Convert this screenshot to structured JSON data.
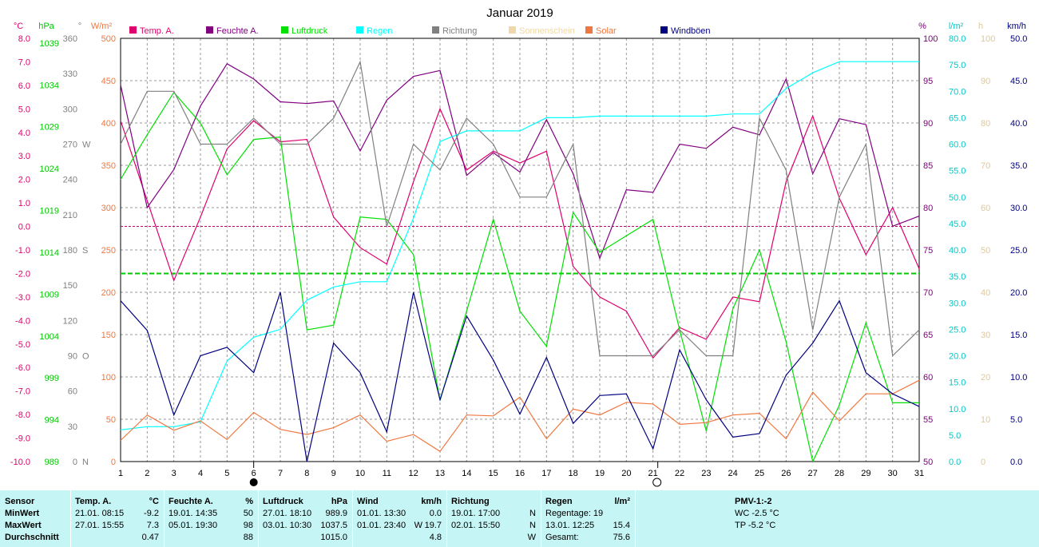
{
  "chart_data": {
    "type": "line",
    "title": "Januar 2019",
    "x": [
      1,
      2,
      3,
      4,
      5,
      6,
      7,
      8,
      9,
      10,
      11,
      12,
      13,
      14,
      15,
      16,
      17,
      18,
      19,
      20,
      21,
      22,
      23,
      24,
      25,
      26,
      27,
      28,
      29,
      30,
      31
    ],
    "legend": [
      {
        "name": "Temp. A.",
        "color": "#e0006e"
      },
      {
        "name": "Feuchte A.",
        "color": "#800080"
      },
      {
        "name": "Luftdruck",
        "color": "#00e000"
      },
      {
        "name": "Regen",
        "color": "#00ffff"
      },
      {
        "name": "Richtung",
        "color": "#808080"
      },
      {
        "name": "Sonnenschein",
        "color": "#f0d8a8"
      },
      {
        "name": "Solar",
        "color": "#f07840"
      },
      {
        "name": "Windböen",
        "color": "#000080"
      }
    ],
    "axes": {
      "temp": {
        "unit": "°C",
        "ylim": [
          -10,
          8
        ],
        "ticks": [
          "-10.0",
          "-9.0",
          "-8.0",
          "-7.0",
          "-6.0",
          "-5.0",
          "-4.0",
          "-3.0",
          "-2.0",
          "-1.0",
          "0.0",
          "1.0",
          "2.0",
          "3.0",
          "4.0",
          "5.0",
          "6.0",
          "7.0",
          "8.0"
        ]
      },
      "pressure": {
        "unit": "hPa",
        "ticks": [
          "989",
          "994",
          "999",
          "1004",
          "1009",
          "1014",
          "1019",
          "1024",
          "1029",
          "1034",
          "1039"
        ]
      },
      "direction": {
        "unit": "°",
        "ylim": [
          0,
          360
        ],
        "ticks": [
          "0",
          "30",
          "60",
          "90",
          "120",
          "150",
          "180",
          "210",
          "240",
          "270",
          "300",
          "330",
          "360"
        ],
        "compass": [
          "N",
          "O",
          "S",
          "W"
        ]
      },
      "solar": {
        "unit": "W/m²",
        "ylim": [
          0,
          500
        ],
        "ticks": [
          "0",
          "50",
          "100",
          "150",
          "200",
          "250",
          "300",
          "350",
          "400",
          "450",
          "500"
        ]
      },
      "humidity": {
        "unit": "%",
        "ylim": [
          50,
          100
        ],
        "ticks": [
          "50",
          "55",
          "60",
          "65",
          "70",
          "75",
          "80",
          "85",
          "90",
          "95",
          "100"
        ]
      },
      "rain": {
        "unit": "l/m²",
        "ylim": [
          0,
          80
        ],
        "ticks": [
          "0.0",
          "5.0",
          "10.0",
          "15.0",
          "20.0",
          "25.0",
          "30.0",
          "35.0",
          "40.0",
          "45.0",
          "50.0",
          "55.0",
          "60.0",
          "65.0",
          "70.0",
          "75.0",
          "80.0"
        ]
      },
      "sunshine": {
        "unit": "h",
        "ylim": [
          0,
          100
        ],
        "ticks": [
          "0",
          "10",
          "20",
          "30",
          "40",
          "50",
          "60",
          "70",
          "80",
          "90",
          "100"
        ]
      },
      "wind": {
        "unit": "km/h",
        "ylim": [
          0,
          50
        ],
        "ticks": [
          "0.0",
          "5.0",
          "10.0",
          "15.0",
          "20.0",
          "25.0",
          "30.0",
          "35.0",
          "40.0",
          "45.0",
          "50.0"
        ]
      }
    },
    "reference_lines": {
      "temp_zero": 0.0,
      "pressure_mean_temp_scale": -2.0
    },
    "moon": {
      "full_moon_day": 21,
      "new_moon_day": 6
    },
    "series": [
      {
        "name": "Temp. A.",
        "axis": "temp",
        "color": "#e0006e",
        "values": [
          4.5,
          1.1,
          -2.3,
          0.4,
          3.3,
          4.5,
          3.6,
          3.7,
          0.4,
          -0.9,
          -1.6,
          1.9,
          5.0,
          2.4,
          3.2,
          2.7,
          3.2,
          -1.7,
          -3.0,
          -3.6,
          -5.6,
          -4.3,
          -4.8,
          -3.0,
          -3.2,
          1.9,
          4.7,
          1.2,
          -1.2,
          0.8,
          -1.8
        ]
      },
      {
        "name": "Feuchte A.",
        "axis": "humidity",
        "color": "#800080",
        "values": [
          94.5,
          80,
          84.5,
          92,
          97,
          95.2,
          92.5,
          92.3,
          92.6,
          86.7,
          92.7,
          95.5,
          96.2,
          83.8,
          86.5,
          84.2,
          90.4,
          84,
          74,
          82.1,
          81.8,
          87.5,
          87,
          89.5,
          88.6,
          95.2,
          84,
          90.5,
          89.8,
          77.8,
          79
        ]
      },
      {
        "name": "Luftdruck",
        "axis": "temp",
        "color": "#00e000",
        "values": [
          2.0,
          3.9,
          5.7,
          4.4,
          2.2,
          3.7,
          3.8,
          -4.4,
          -4.2,
          0.4,
          0.3,
          -1.2,
          -7.4,
          -3.6,
          0.3,
          -3.6,
          -5.1,
          0.6,
          -1.1,
          -0.4,
          0.3,
          -4.4,
          -8.7,
          -3.5,
          -1.0,
          -4.9,
          -10.0,
          -7.6,
          -4.1,
          -7.5,
          -7.5
        ]
      },
      {
        "name": "Regen",
        "axis": "rain",
        "color": "#00ffff",
        "values": [
          6,
          6.6,
          6.6,
          7.5,
          19,
          23.5,
          25,
          30.5,
          33,
          34,
          34,
          46,
          60.5,
          62.5,
          62.5,
          62.5,
          65,
          65,
          65.3,
          65.3,
          65.3,
          65.3,
          65.3,
          65.7,
          65.7,
          70.5,
          73.5,
          75.6,
          75.6,
          75.6,
          75.6
        ]
      },
      {
        "name": "Richtung",
        "axis": "direction",
        "color": "#808080",
        "values": [
          270,
          315,
          315,
          270,
          270,
          292,
          270,
          270,
          292,
          340,
          200,
          270,
          248,
          292,
          270,
          225,
          225,
          270,
          90,
          90,
          90,
          112,
          90,
          90,
          292,
          248,
          112,
          225,
          270,
          90,
          112
        ]
      },
      {
        "name": "Solar",
        "axis": "solar",
        "color": "#f07840",
        "values": [
          25,
          55,
          37,
          48,
          26,
          58,
          38,
          32,
          40,
          55,
          24,
          32,
          12,
          55,
          54,
          76,
          27,
          62,
          55,
          70,
          68,
          44,
          46,
          55,
          57,
          27,
          82,
          48,
          80,
          80,
          96
        ]
      },
      {
        "name": "Windböen",
        "axis": "wind",
        "color": "#000080",
        "values": [
          19,
          15.5,
          5.5,
          12.5,
          13.5,
          10.5,
          20,
          0,
          14,
          10.5,
          3.5,
          20,
          7.3,
          17.2,
          12,
          5.6,
          12.3,
          4.5,
          7.8,
          8,
          1.5,
          13.2,
          7.3,
          2.9,
          3.3,
          10.2,
          14,
          19,
          10.5,
          8,
          6.5
        ]
      }
    ]
  },
  "stats": {
    "headers": {
      "sensor": "Sensor",
      "temp": "Temp. A.",
      "temp_unit": "°C",
      "hum": "Feuchte A.",
      "hum_unit": "%",
      "press": "Luftdruck",
      "press_unit": "hPa",
      "wind": "Wind",
      "wind_unit": "km/h",
      "dir": "Richtung",
      "rain": "Regen",
      "rain_unit": "l/m²",
      "pmv": "PMV-1:-2"
    },
    "rows": {
      "min": "MinWert",
      "max": "MaxWert",
      "avg": "Durchschnitt"
    },
    "temp": {
      "min_time": "21.01.  08:15",
      "min_val": "-9.2",
      "max_time": "27.01.  15:55",
      "max_val": "7.3",
      "avg": "0.47"
    },
    "hum": {
      "min_time": "19.01.  14:35",
      "min_val": "50",
      "max_time": "05.01.  19:30",
      "max_val": "98",
      "avg": "88"
    },
    "press": {
      "min_time": "27.01.  18:10",
      "min_val": "989.9",
      "max_time": "03.01.  10:30",
      "max_val": "1037.5",
      "avg": "1015.0"
    },
    "wind": {
      "min_time": "01.01.  13:30",
      "min_val": "0.0",
      "max_time": "01.01.  23:40",
      "max_dir": "W",
      "max_val": "19.7",
      "avg": "4.8"
    },
    "dir": {
      "min_time": "19.01.  17:00",
      "min_val": "N",
      "max_time": "02.01.  15:50",
      "max_val": "N",
      "avg": "W"
    },
    "rain": {
      "days": "Regentage: 19",
      "max_time": "13.01.  12:25",
      "max_val": "15.4",
      "total_label": "Gesamt:",
      "total": "75.6"
    },
    "pmv": {
      "wc": "WC -2.5 °C",
      "tp": "TP -5.2 °C"
    }
  }
}
